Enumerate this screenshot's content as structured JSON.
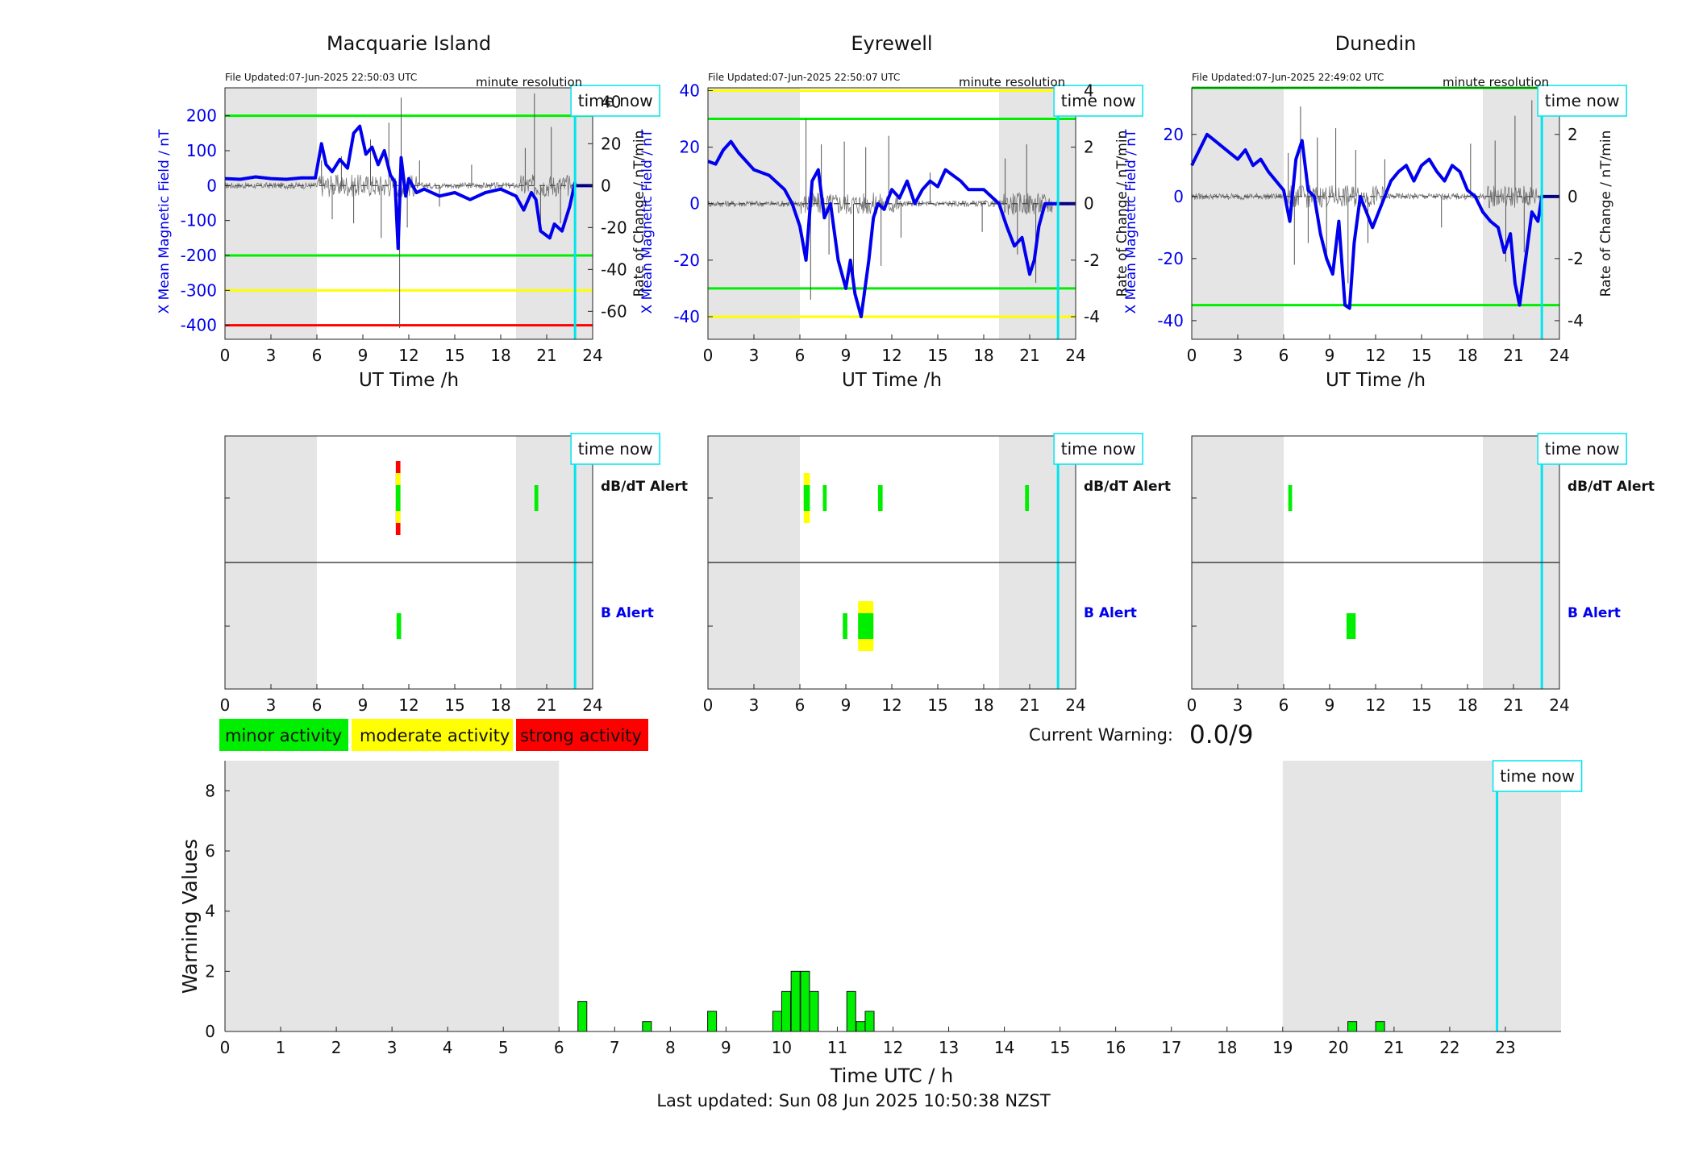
{
  "labels": {
    "ut_time": "UT Time /h",
    "x_field": "X Mean Magnetic Field / nT",
    "rate": "Rate of Change / nT/min",
    "resolution": "minute resolution",
    "time_now": "time now",
    "dbdt_alert": "dB/dT Alert",
    "b_alert": "B Alert",
    "current_warning_label": "Current Warning:",
    "current_warning_value": "0.0/9",
    "warning_values": "Warning Values",
    "time_utc": "Time UTC / h",
    "last_updated": "Last updated: Sun 08 Jun 2025 10:50:38 NZST"
  },
  "colors": {
    "mean_field": "#0000ee",
    "rate": "#555555",
    "threshold_minor": "#00ee00",
    "threshold_moderate": "#ffff00",
    "threshold_strong": "#ff0000",
    "time_now": "#00e5ee",
    "night_shade": "#e5e5e5"
  },
  "legend": [
    {
      "label": "minor activity",
      "color": "#00ee00"
    },
    {
      "label": "moderate activity",
      "color": "#ffff00"
    },
    {
      "label": "strong activity",
      "color": "#ff0000"
    }
  ],
  "chart_data": [
    {
      "type": "line",
      "station": "Macquarie Island",
      "file_updated": "File Updated:07-Jun-2025 22:50:03 UTC",
      "xlim": [
        0,
        24
      ],
      "xticks": [
        0,
        3,
        6,
        9,
        12,
        15,
        18,
        21,
        24
      ],
      "ylim": [
        -440,
        280
      ],
      "yticks": [
        200,
        100,
        0,
        -100,
        -200,
        -300,
        -400
      ],
      "y2lim": [
        -73.33,
        46.67
      ],
      "y2ticks": [
        40,
        20,
        0,
        -20,
        -40,
        -60
      ],
      "night_shade": [
        [
          0,
          6
        ],
        [
          19,
          24
        ]
      ],
      "time_now": 22.85,
      "thresholds": [
        {
          "value": 200,
          "level": "minor"
        },
        {
          "value": -200,
          "level": "minor"
        },
        {
          "value": -300,
          "level": "moderate"
        },
        {
          "value": -400,
          "level": "strong"
        }
      ],
      "mean_field": {
        "t": [
          0,
          1,
          2,
          3,
          4,
          5,
          5.9,
          6.3,
          6.6,
          7,
          7.5,
          8,
          8.4,
          8.8,
          9.2,
          9.6,
          10,
          10.4,
          10.8,
          11.1,
          11.3,
          11.5,
          11.8,
          12,
          12.5,
          13,
          14,
          15,
          16,
          17,
          18,
          19,
          19.5,
          20,
          20.3,
          20.6,
          20.9,
          21.2,
          21.5,
          22,
          22.5,
          22.85
        ],
        "y": [
          20,
          18,
          25,
          20,
          18,
          22,
          22,
          120,
          60,
          40,
          75,
          50,
          150,
          170,
          90,
          110,
          60,
          100,
          30,
          10,
          -180,
          80,
          -30,
          20,
          -20,
          -10,
          -30,
          -20,
          -40,
          -20,
          -10,
          -30,
          -70,
          -20,
          -40,
          -130,
          -140,
          -150,
          -110,
          -130,
          -60,
          10
        ]
      },
      "rate_spikes": [
        {
          "t": 6.3,
          "y": 12
        },
        {
          "t": 7,
          "y": -16
        },
        {
          "t": 7.6,
          "y": 14
        },
        {
          "t": 8.4,
          "y": -18
        },
        {
          "t": 9.5,
          "y": 22
        },
        {
          "t": 10.2,
          "y": -25
        },
        {
          "t": 10.7,
          "y": 30
        },
        {
          "t": 11.4,
          "y": -68
        },
        {
          "t": 11.5,
          "y": 42
        },
        {
          "t": 11.9,
          "y": -20
        },
        {
          "t": 12.7,
          "y": 12
        },
        {
          "t": 14,
          "y": -10
        },
        {
          "t": 16.1,
          "y": 10
        },
        {
          "t": 19.6,
          "y": 18
        },
        {
          "t": 20.2,
          "y": 44
        },
        {
          "t": 20.6,
          "y": -22
        },
        {
          "t": 21.3,
          "y": 28
        },
        {
          "t": 21.9,
          "y": -18
        }
      ],
      "alerts": {
        "dbdt": [
          {
            "t0": 11.15,
            "t1": 11.45,
            "levels": [
              "strong",
              "moderate",
              "minor"
            ]
          },
          {
            "t0": 20.2,
            "t1": 20.45,
            "levels": [
              "minor"
            ]
          }
        ],
        "b": [
          {
            "t0": 11.2,
            "t1": 11.5,
            "levels": [
              "minor"
            ]
          }
        ]
      }
    },
    {
      "type": "line",
      "station": "Eyrewell",
      "file_updated": "File Updated:07-Jun-2025 22:50:07 UTC",
      "xlim": [
        0,
        24
      ],
      "xticks": [
        0,
        3,
        6,
        9,
        12,
        15,
        18,
        21,
        24
      ],
      "ylim": [
        -48,
        41
      ],
      "yticks": [
        40,
        20,
        0,
        -20,
        -40
      ],
      "y2lim": [
        -4.8,
        4.1
      ],
      "y2ticks": [
        4,
        2,
        0,
        -2,
        -4
      ],
      "night_shade": [
        [
          0,
          6
        ],
        [
          19,
          24
        ]
      ],
      "time_now": 22.85,
      "thresholds": [
        {
          "value": 40,
          "level": "moderate"
        },
        {
          "value": 30,
          "level": "minor"
        },
        {
          "value": -30,
          "level": "minor"
        },
        {
          "value": -40,
          "level": "moderate"
        }
      ],
      "mean_field": {
        "t": [
          0,
          0.5,
          1,
          1.5,
          2,
          2.5,
          3,
          4,
          5,
          5.5,
          6,
          6.4,
          6.8,
          7.2,
          7.6,
          8,
          8.5,
          9,
          9.3,
          9.6,
          10,
          10.5,
          10.8,
          11.1,
          11.5,
          12,
          12.5,
          13,
          13.5,
          14,
          14.5,
          15,
          15.5,
          16,
          16.5,
          17,
          18,
          19,
          19.5,
          20,
          20.5,
          21,
          21.3,
          21.6,
          22,
          22.85
        ],
        "y": [
          15,
          14,
          19,
          22,
          18,
          15,
          12,
          10,
          5,
          0,
          -8,
          -20,
          8,
          12,
          -5,
          0,
          -20,
          -30,
          -20,
          -32,
          -40,
          -20,
          -5,
          0,
          -2,
          5,
          2,
          8,
          0,
          5,
          8,
          6,
          12,
          10,
          8,
          5,
          5,
          0,
          -8,
          -15,
          -12,
          -25,
          -20,
          -8,
          0,
          0
        ]
      },
      "rate_spikes": [
        {
          "t": 6.4,
          "y": 3
        },
        {
          "t": 6.7,
          "y": -3.4
        },
        {
          "t": 7.4,
          "y": 2.1
        },
        {
          "t": 7.9,
          "y": -1.8
        },
        {
          "t": 8.9,
          "y": 2.2
        },
        {
          "t": 9.5,
          "y": -2.6
        },
        {
          "t": 10.3,
          "y": 2
        },
        {
          "t": 11.3,
          "y": -2.2
        },
        {
          "t": 11.8,
          "y": 2.4
        },
        {
          "t": 12.6,
          "y": -1.2
        },
        {
          "t": 14.5,
          "y": 1.1
        },
        {
          "t": 17.9,
          "y": -1
        },
        {
          "t": 19.4,
          "y": 1.6
        },
        {
          "t": 20.2,
          "y": -1.8
        },
        {
          "t": 20.8,
          "y": 2.1
        },
        {
          "t": 21.4,
          "y": -2.8
        }
      ],
      "alerts": {
        "dbdt": [
          {
            "t0": 6.25,
            "t1": 6.65,
            "levels": [
              "moderate",
              "minor"
            ]
          },
          {
            "t0": 7.5,
            "t1": 7.75,
            "levels": [
              "minor"
            ]
          },
          {
            "t0": 11.1,
            "t1": 11.4,
            "levels": [
              "minor"
            ]
          },
          {
            "t0": 20.7,
            "t1": 20.95,
            "levels": [
              "minor"
            ]
          }
        ],
        "b": [
          {
            "t0": 8.8,
            "t1": 9.1,
            "levels": [
              "minor"
            ]
          },
          {
            "t0": 9.8,
            "t1": 10.8,
            "levels": [
              "moderate",
              "minor"
            ]
          }
        ]
      }
    },
    {
      "type": "line",
      "station": "Dunedin",
      "file_updated": "File Updated:07-Jun-2025 22:49:02 UTC",
      "xlim": [
        0,
        24
      ],
      "xticks": [
        0,
        3,
        6,
        9,
        12,
        15,
        18,
        21,
        24
      ],
      "ylim": [
        -46,
        35
      ],
      "yticks": [
        20,
        0,
        -20,
        -40
      ],
      "y2lim": [
        -4.6,
        3.5
      ],
      "y2ticks": [
        2,
        0,
        -2,
        -4
      ],
      "night_shade": [
        [
          0,
          6
        ],
        [
          19,
          24
        ]
      ],
      "time_now": 22.85,
      "thresholds": [
        {
          "value": 35,
          "level": "minor"
        },
        {
          "value": -35,
          "level": "minor"
        }
      ],
      "mean_field": {
        "t": [
          0,
          0.5,
          1,
          1.5,
          2,
          2.5,
          3,
          3.5,
          4,
          4.5,
          5,
          5.5,
          6,
          6.4,
          6.8,
          7.2,
          7.6,
          8,
          8.4,
          8.8,
          9.2,
          9.6,
          10,
          10.3,
          10.6,
          11,
          11.4,
          11.8,
          12.2,
          12.6,
          13,
          13.5,
          14,
          14.5,
          15,
          15.5,
          16,
          16.5,
          17,
          17.5,
          18,
          18.5,
          19,
          19.5,
          20,
          20.4,
          20.8,
          21.1,
          21.4,
          21.8,
          22.2,
          22.6,
          22.85
        ],
        "y": [
          10,
          15,
          20,
          18,
          16,
          14,
          12,
          15,
          10,
          12,
          8,
          5,
          2,
          -8,
          12,
          18,
          2,
          0,
          -12,
          -20,
          -25,
          -8,
          -35,
          -36,
          -15,
          0,
          -5,
          -10,
          -5,
          0,
          5,
          8,
          10,
          5,
          10,
          12,
          8,
          5,
          10,
          8,
          2,
          0,
          -5,
          -8,
          -10,
          -18,
          -12,
          -28,
          -35,
          -20,
          -5,
          -8,
          0
        ]
      },
      "rate_spikes": [
        {
          "t": 6.3,
          "y": 1.4
        },
        {
          "t": 6.7,
          "y": -2.2
        },
        {
          "t": 7.1,
          "y": 2.9
        },
        {
          "t": 7.6,
          "y": -1.5
        },
        {
          "t": 8.2,
          "y": 1.9
        },
        {
          "t": 8.8,
          "y": -2
        },
        {
          "t": 9.4,
          "y": 2.2
        },
        {
          "t": 10.2,
          "y": -2.8
        },
        {
          "t": 10.7,
          "y": 1.5
        },
        {
          "t": 11.5,
          "y": -1.5
        },
        {
          "t": 12.6,
          "y": 1.2
        },
        {
          "t": 16.3,
          "y": -1
        },
        {
          "t": 18.2,
          "y": 1.7
        },
        {
          "t": 19.8,
          "y": 1.8
        },
        {
          "t": 20.5,
          "y": -2.1
        },
        {
          "t": 21.1,
          "y": 2.6
        },
        {
          "t": 21.7,
          "y": -1.8
        },
        {
          "t": 22.2,
          "y": 3.1
        }
      ],
      "alerts": {
        "dbdt": [
          {
            "t0": 6.3,
            "t1": 6.55,
            "levels": [
              "minor"
            ]
          }
        ],
        "b": [
          {
            "t0": 10.1,
            "t1": 10.7,
            "levels": [
              "minor"
            ]
          }
        ]
      }
    },
    {
      "type": "bar",
      "name": "warning-values",
      "xlim": [
        0,
        24
      ],
      "xticks": [
        0,
        1,
        2,
        3,
        4,
        5,
        6,
        7,
        8,
        9,
        10,
        11,
        12,
        13,
        14,
        15,
        16,
        17,
        18,
        19,
        20,
        21,
        22,
        23
      ],
      "ylim": [
        0,
        9
      ],
      "yticks": [
        0,
        2,
        4,
        6,
        8
      ],
      "night_shade": [
        [
          0,
          6
        ],
        [
          19,
          24
        ]
      ],
      "time_now": 22.85,
      "bar_width": 0.16,
      "bars": [
        {
          "t": 6.42,
          "value": 1
        },
        {
          "t": 7.58,
          "value": 0.33
        },
        {
          "t": 8.75,
          "value": 0.67
        },
        {
          "t": 9.92,
          "value": 0.67
        },
        {
          "t": 10.08,
          "value": 1.33
        },
        {
          "t": 10.25,
          "value": 2
        },
        {
          "t": 10.42,
          "value": 2
        },
        {
          "t": 10.58,
          "value": 1.33
        },
        {
          "t": 11.25,
          "value": 1.33
        },
        {
          "t": 11.42,
          "value": 0.33
        },
        {
          "t": 11.58,
          "value": 0.67
        },
        {
          "t": 20.25,
          "value": 0.33
        },
        {
          "t": 20.75,
          "value": 0.33
        }
      ]
    }
  ]
}
